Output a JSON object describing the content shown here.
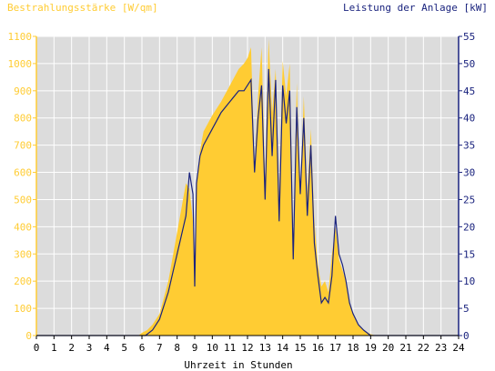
{
  "chart_data": {
    "type": "area",
    "left_axis_title": "Bestrahlungsstärke [W/qm]",
    "right_axis_title": "Leistung der Anlage [kW]",
    "xlabel": "Uhrzeit in Stunden",
    "xlim": [
      0,
      24
    ],
    "ylim_left": [
      0,
      1100
    ],
    "ylim_right": [
      0,
      55
    ],
    "x_ticks": [
      "0",
      "1",
      "2",
      "3",
      "4",
      "5",
      "6",
      "7",
      "8",
      "9",
      "10",
      "11",
      "12",
      "13",
      "14",
      "15",
      "16",
      "17",
      "18",
      "19",
      "20",
      "21",
      "22",
      "23",
      "24"
    ],
    "y_ticks_left": [
      "0",
      "100",
      "200",
      "300",
      "400",
      "500",
      "600",
      "700",
      "800",
      "900",
      "1000",
      "1100"
    ],
    "y_ticks_right": [
      "0",
      "5",
      "10",
      "15",
      "20",
      "25",
      "30",
      "35",
      "40",
      "45",
      "50",
      "55"
    ],
    "grid": true,
    "colors": {
      "plot_bg": "#dcdcdc",
      "irradiance_fill": "#ffcc33",
      "power_line": "#1a237e",
      "left_axis": "#ffcc33",
      "right_axis": "#1a237e",
      "grid": "#ffffff"
    },
    "series": [
      {
        "axis": "left",
        "style": "filled-area",
        "x": [
          0,
          5.8,
          6.0,
          6.3,
          6.6,
          7.0,
          7.5,
          8.0,
          8.5,
          8.7,
          8.9,
          9.0,
          9.1,
          9.3,
          9.5,
          10.0,
          10.5,
          11.0,
          11.5,
          11.8,
          12.0,
          12.2,
          12.4,
          12.6,
          12.8,
          13.0,
          13.2,
          13.4,
          13.6,
          13.8,
          14.0,
          14.2,
          14.4,
          14.6,
          14.8,
          15.0,
          15.2,
          15.4,
          15.6,
          15.8,
          16.0,
          16.2,
          16.4,
          16.6,
          16.8,
          17.0,
          17.2,
          17.4,
          17.6,
          17.8,
          18.0,
          18.3,
          18.6,
          19.0,
          19.3,
          24
        ],
        "values": [
          0,
          0,
          10,
          20,
          40,
          80,
          200,
          380,
          560,
          540,
          420,
          180,
          560,
          680,
          750,
          810,
          860,
          920,
          980,
          1000,
          1020,
          1060,
          620,
          880,
          1060,
          580,
          1090,
          820,
          980,
          520,
          1010,
          880,
          1000,
          320,
          930,
          520,
          880,
          520,
          760,
          420,
          260,
          180,
          200,
          160,
          300,
          400,
          280,
          240,
          200,
          120,
          80,
          40,
          20,
          5,
          0,
          0
        ]
      },
      {
        "axis": "right",
        "style": "line",
        "x": [
          0,
          6.2,
          6.6,
          7.0,
          7.5,
          8.0,
          8.5,
          8.7,
          8.9,
          9.0,
          9.1,
          9.3,
          9.5,
          10.0,
          10.5,
          11.0,
          11.5,
          11.8,
          12.0,
          12.2,
          12.4,
          12.6,
          12.8,
          13.0,
          13.2,
          13.4,
          13.6,
          13.8,
          14.0,
          14.2,
          14.4,
          14.6,
          14.8,
          15.0,
          15.2,
          15.4,
          15.6,
          15.8,
          16.0,
          16.2,
          16.4,
          16.6,
          16.8,
          17.0,
          17.2,
          17.4,
          17.6,
          17.8,
          18.0,
          18.3,
          18.6,
          19.0,
          24
        ],
        "values": [
          0,
          0,
          1,
          3,
          8,
          15,
          22,
          30,
          26,
          9,
          28,
          33,
          35,
          38,
          41,
          43,
          45,
          45,
          46,
          47,
          30,
          40,
          46,
          25,
          49,
          33,
          47,
          21,
          46,
          39,
          45,
          14,
          42,
          26,
          40,
          22,
          35,
          17,
          11,
          6,
          7,
          6,
          11,
          22,
          15,
          13,
          10,
          6,
          4,
          2,
          1,
          0,
          0
        ]
      }
    ]
  }
}
